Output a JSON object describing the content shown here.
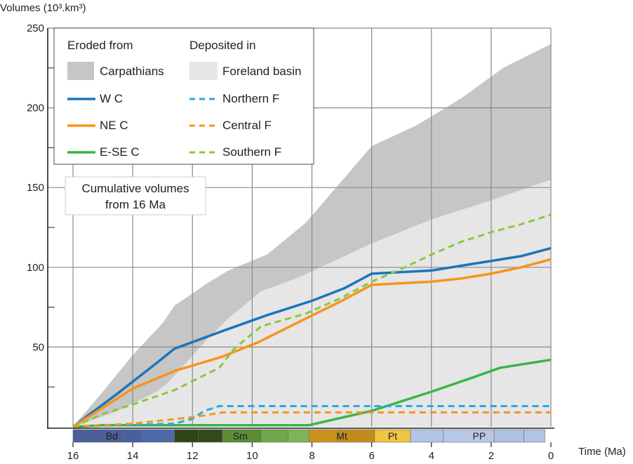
{
  "chart_data": {
    "type": "area",
    "title": "",
    "xlabel": "Time (Ma)",
    "ylabel": "Volumes (10³.km³)",
    "xlim": [
      16,
      0
    ],
    "ylim": [
      0,
      250
    ],
    "x_reversed": true,
    "grid": true,
    "x_ticks": [
      16,
      14,
      12,
      10,
      8,
      6,
      4,
      2,
      0
    ],
    "y_ticks": [
      50,
      100,
      150,
      200,
      250
    ],
    "legend": {
      "placement": "top-left",
      "col1_header": "Eroded from",
      "col2_header": "Deposited in",
      "items": [
        {
          "key": "carpathians",
          "label": "Carpathians"
        },
        {
          "key": "foreland",
          "label": "Foreland basin"
        },
        {
          "key": "wc",
          "label": "W C"
        },
        {
          "key": "northern",
          "label": "Northern F"
        },
        {
          "key": "nec",
          "label": "NE C"
        },
        {
          "key": "central",
          "label": "Central F"
        },
        {
          "key": "esec",
          "label": "E-SE C"
        },
        {
          "key": "southern",
          "label": "Southern F"
        }
      ]
    },
    "annotation": {
      "line1": "Cumulative volumes",
      "line2": "from 16 Ma"
    },
    "areas": [
      {
        "name": "Carpathians",
        "color": "#c6c6c6",
        "x": [
          16,
          15,
          14,
          13,
          12.6,
          11.5,
          10.8,
          9.5,
          8.2,
          6.0,
          4.5,
          3.0,
          1.6,
          0
        ],
        "y": [
          0,
          22,
          45,
          65,
          76,
          90,
          98,
          108,
          128,
          176,
          189,
          206,
          225,
          240
        ]
      },
      {
        "name": "Foreland basin",
        "color": "#e6e6e6",
        "x": [
          16,
          14.5,
          13.2,
          12.8,
          11.5,
          10.8,
          9.7,
          8.4,
          6.0,
          4.0,
          2.0,
          0
        ],
        "y": [
          0,
          10,
          22,
          28,
          55,
          68,
          85,
          94,
          115,
          130,
          142,
          155
        ]
      }
    ],
    "series": [
      {
        "name": "W C",
        "group": "Eroded from",
        "color": "#1b75bb",
        "style": "solid",
        "x": [
          16,
          14.5,
          13.2,
          12.6,
          11.0,
          9.5,
          8.0,
          6.9,
          6.0,
          5.0,
          4.0,
          3.0,
          2.0,
          1.0,
          0
        ],
        "y": [
          0,
          21,
          40,
          49,
          60,
          70,
          79,
          87,
          96,
          97,
          98,
          101,
          104,
          107,
          112
        ]
      },
      {
        "name": "NE C",
        "group": "Eroded from",
        "color": "#f7941d",
        "style": "solid",
        "x": [
          16,
          14.0,
          12.6,
          11.0,
          9.8,
          8.3,
          7.0,
          6.0,
          5.0,
          4.0,
          3.0,
          2.0,
          1.0,
          0
        ],
        "y": [
          0,
          24,
          35,
          44,
          53,
          67,
          79,
          89,
          90,
          91,
          93,
          96,
          100,
          105
        ]
      },
      {
        "name": "E-SE C",
        "group": "Eroded from",
        "color": "#39b54a",
        "style": "solid",
        "x": [
          16,
          15.0,
          12.0,
          8.1,
          6.0,
          4.0,
          2.6,
          1.7,
          0
        ],
        "y": [
          0,
          1,
          1,
          1,
          10,
          22,
          31,
          37,
          42
        ]
      },
      {
        "name": "Northern F",
        "group": "Deposited in",
        "color": "#27aae1",
        "style": "dashed",
        "x": [
          16,
          14.5,
          12.6,
          12.0,
          11.6,
          11.1,
          10.5,
          8.0,
          6.0,
          0
        ],
        "y": [
          0,
          1,
          2,
          5,
          10,
          13,
          13,
          13,
          13,
          13
        ]
      },
      {
        "name": "Central F",
        "group": "Deposited in",
        "color": "#f7941d",
        "style": "dashed",
        "x": [
          16,
          14.0,
          13.0,
          12.0,
          11.0,
          10.0,
          8.0,
          6.0,
          0
        ],
        "y": [
          0,
          2,
          4,
          6,
          9,
          9,
          9,
          9,
          9
        ]
      },
      {
        "name": "Southern F",
        "group": "Deposited in",
        "color": "#8dc63f",
        "style": "dashed",
        "x": [
          16,
          15.0,
          14.0,
          12.6,
          11.1,
          10.6,
          9.7,
          8.2,
          7.0,
          6.0,
          5.0,
          4.0,
          3.0,
          2.0,
          1.0,
          0
        ],
        "y": [
          0,
          8,
          14,
          23,
          37,
          49,
          63,
          71,
          81,
          91,
          99,
          108,
          116,
          122,
          127,
          133
        ]
      }
    ],
    "stages": [
      {
        "label": "Bd",
        "from": 16,
        "to": 12.6,
        "color": "#4a66a3",
        "text_x": 14.7
      },
      {
        "label": "Sm",
        "from": 12.6,
        "to": 8.1,
        "color": "#5b8b36",
        "text_x": 10.4
      },
      {
        "label": "Mt",
        "from": 8.1,
        "to": 5.9,
        "color": "#c8961f",
        "text_x": 7.0
      },
      {
        "label": "Pt",
        "from": 5.9,
        "to": 4.7,
        "color": "#f2c744",
        "text_x": 5.3
      },
      {
        "label": "PP",
        "from": 4.7,
        "to": 0.2,
        "color": "#b5c4e4",
        "text_x": 2.4
      }
    ],
    "stage_subdivisions": [
      {
        "from": 16,
        "to": 14.3,
        "color": "#4b5e99"
      },
      {
        "from": 14.3,
        "to": 13.7,
        "color": "#46619e"
      },
      {
        "from": 13.7,
        "to": 12.6,
        "color": "#4e6aa6"
      },
      {
        "from": 12.6,
        "to": 11.8,
        "color": "#2f4418"
      },
      {
        "from": 11.8,
        "to": 11.0,
        "color": "#33491b"
      },
      {
        "from": 11.0,
        "to": 9.7,
        "color": "#5a8c37"
      },
      {
        "from": 9.7,
        "to": 8.8,
        "color": "#72a64a"
      },
      {
        "from": 8.8,
        "to": 8.1,
        "color": "#7fb358"
      },
      {
        "from": 8.1,
        "to": 7.1,
        "color": "#c9921c"
      },
      {
        "from": 7.1,
        "to": 5.9,
        "color": "#c28c1d"
      },
      {
        "from": 5.9,
        "to": 4.7,
        "color": "#f1c441"
      },
      {
        "from": 4.7,
        "to": 3.6,
        "color": "#b4c4e6"
      },
      {
        "from": 3.6,
        "to": 1.9,
        "color": "#b9c7e6"
      },
      {
        "from": 1.9,
        "to": 0.9,
        "color": "#b1c1e3"
      },
      {
        "from": 0.9,
        "to": 0.2,
        "color": "#b5c4e4"
      }
    ]
  }
}
